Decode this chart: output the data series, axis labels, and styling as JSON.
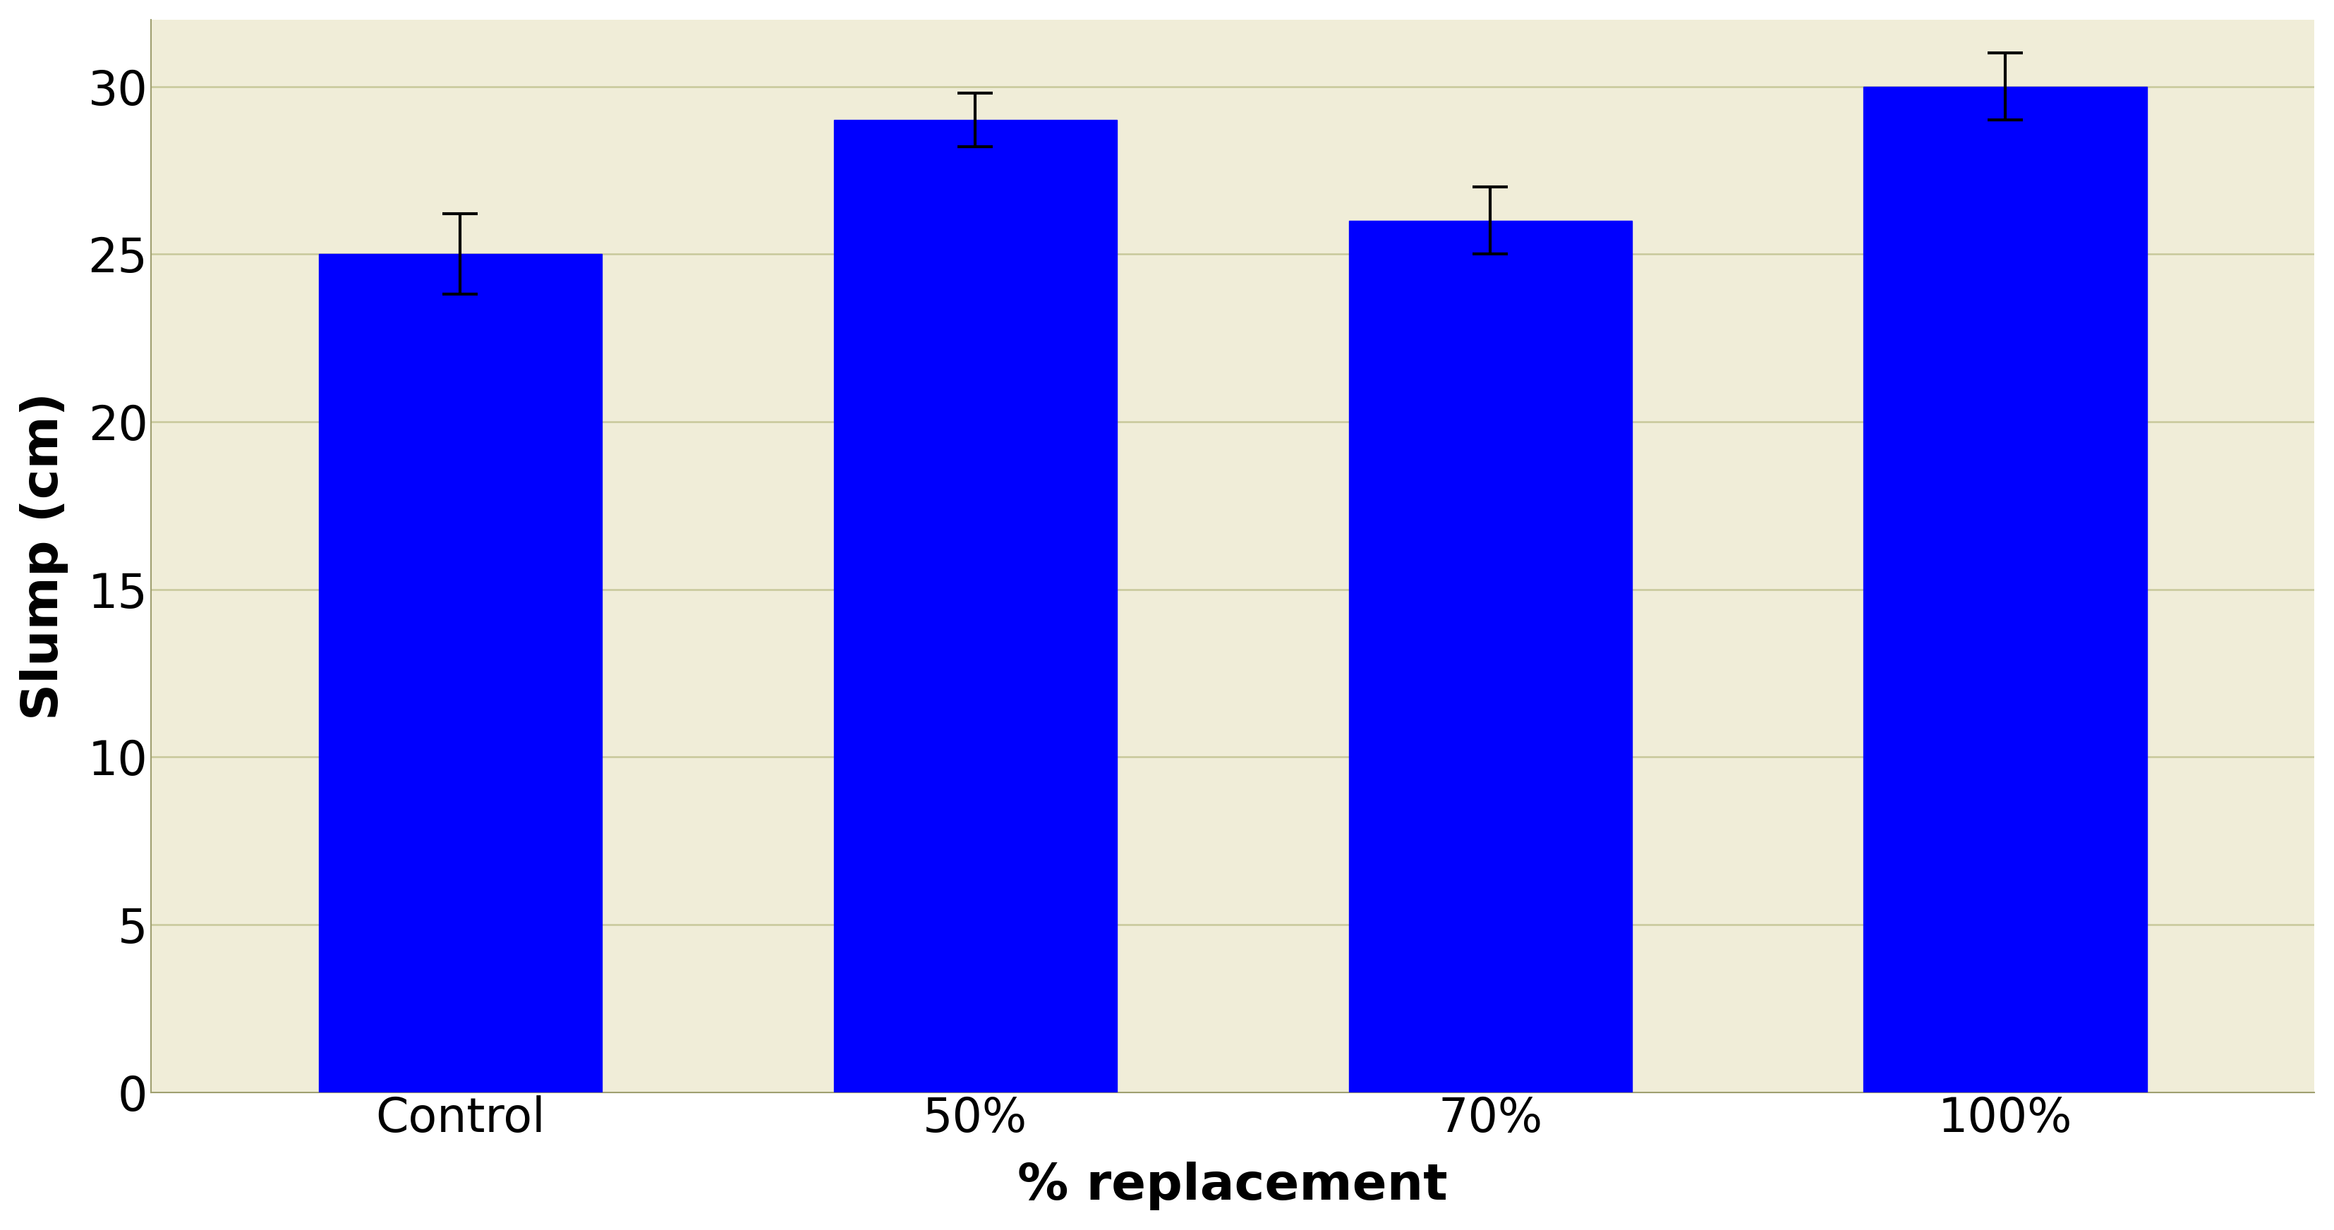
{
  "categories": [
    "Control",
    "50%",
    "70%",
    "100%"
  ],
  "values": [
    25.0,
    29.0,
    26.0,
    30.0
  ],
  "errors": [
    1.2,
    0.8,
    1.0,
    1.0
  ],
  "bar_color": "#0000FF",
  "bar_width": 0.55,
  "xlabel": "% replacement",
  "ylabel": "Slump (cm)",
  "ylim": [
    0,
    32
  ],
  "yticks": [
    0,
    5,
    10,
    15,
    20,
    25,
    30
  ],
  "grid_color": "#C8C89A",
  "plot_bg_color": "#F0EDD8",
  "fig_bg_color": "#FFFFFF",
  "xlabel_fontsize": 52,
  "ylabel_fontsize": 52,
  "tick_fontsize": 48,
  "error_capsize": 18,
  "error_linewidth": 3.0,
  "error_color": "black",
  "spine_color": "#A0A070"
}
